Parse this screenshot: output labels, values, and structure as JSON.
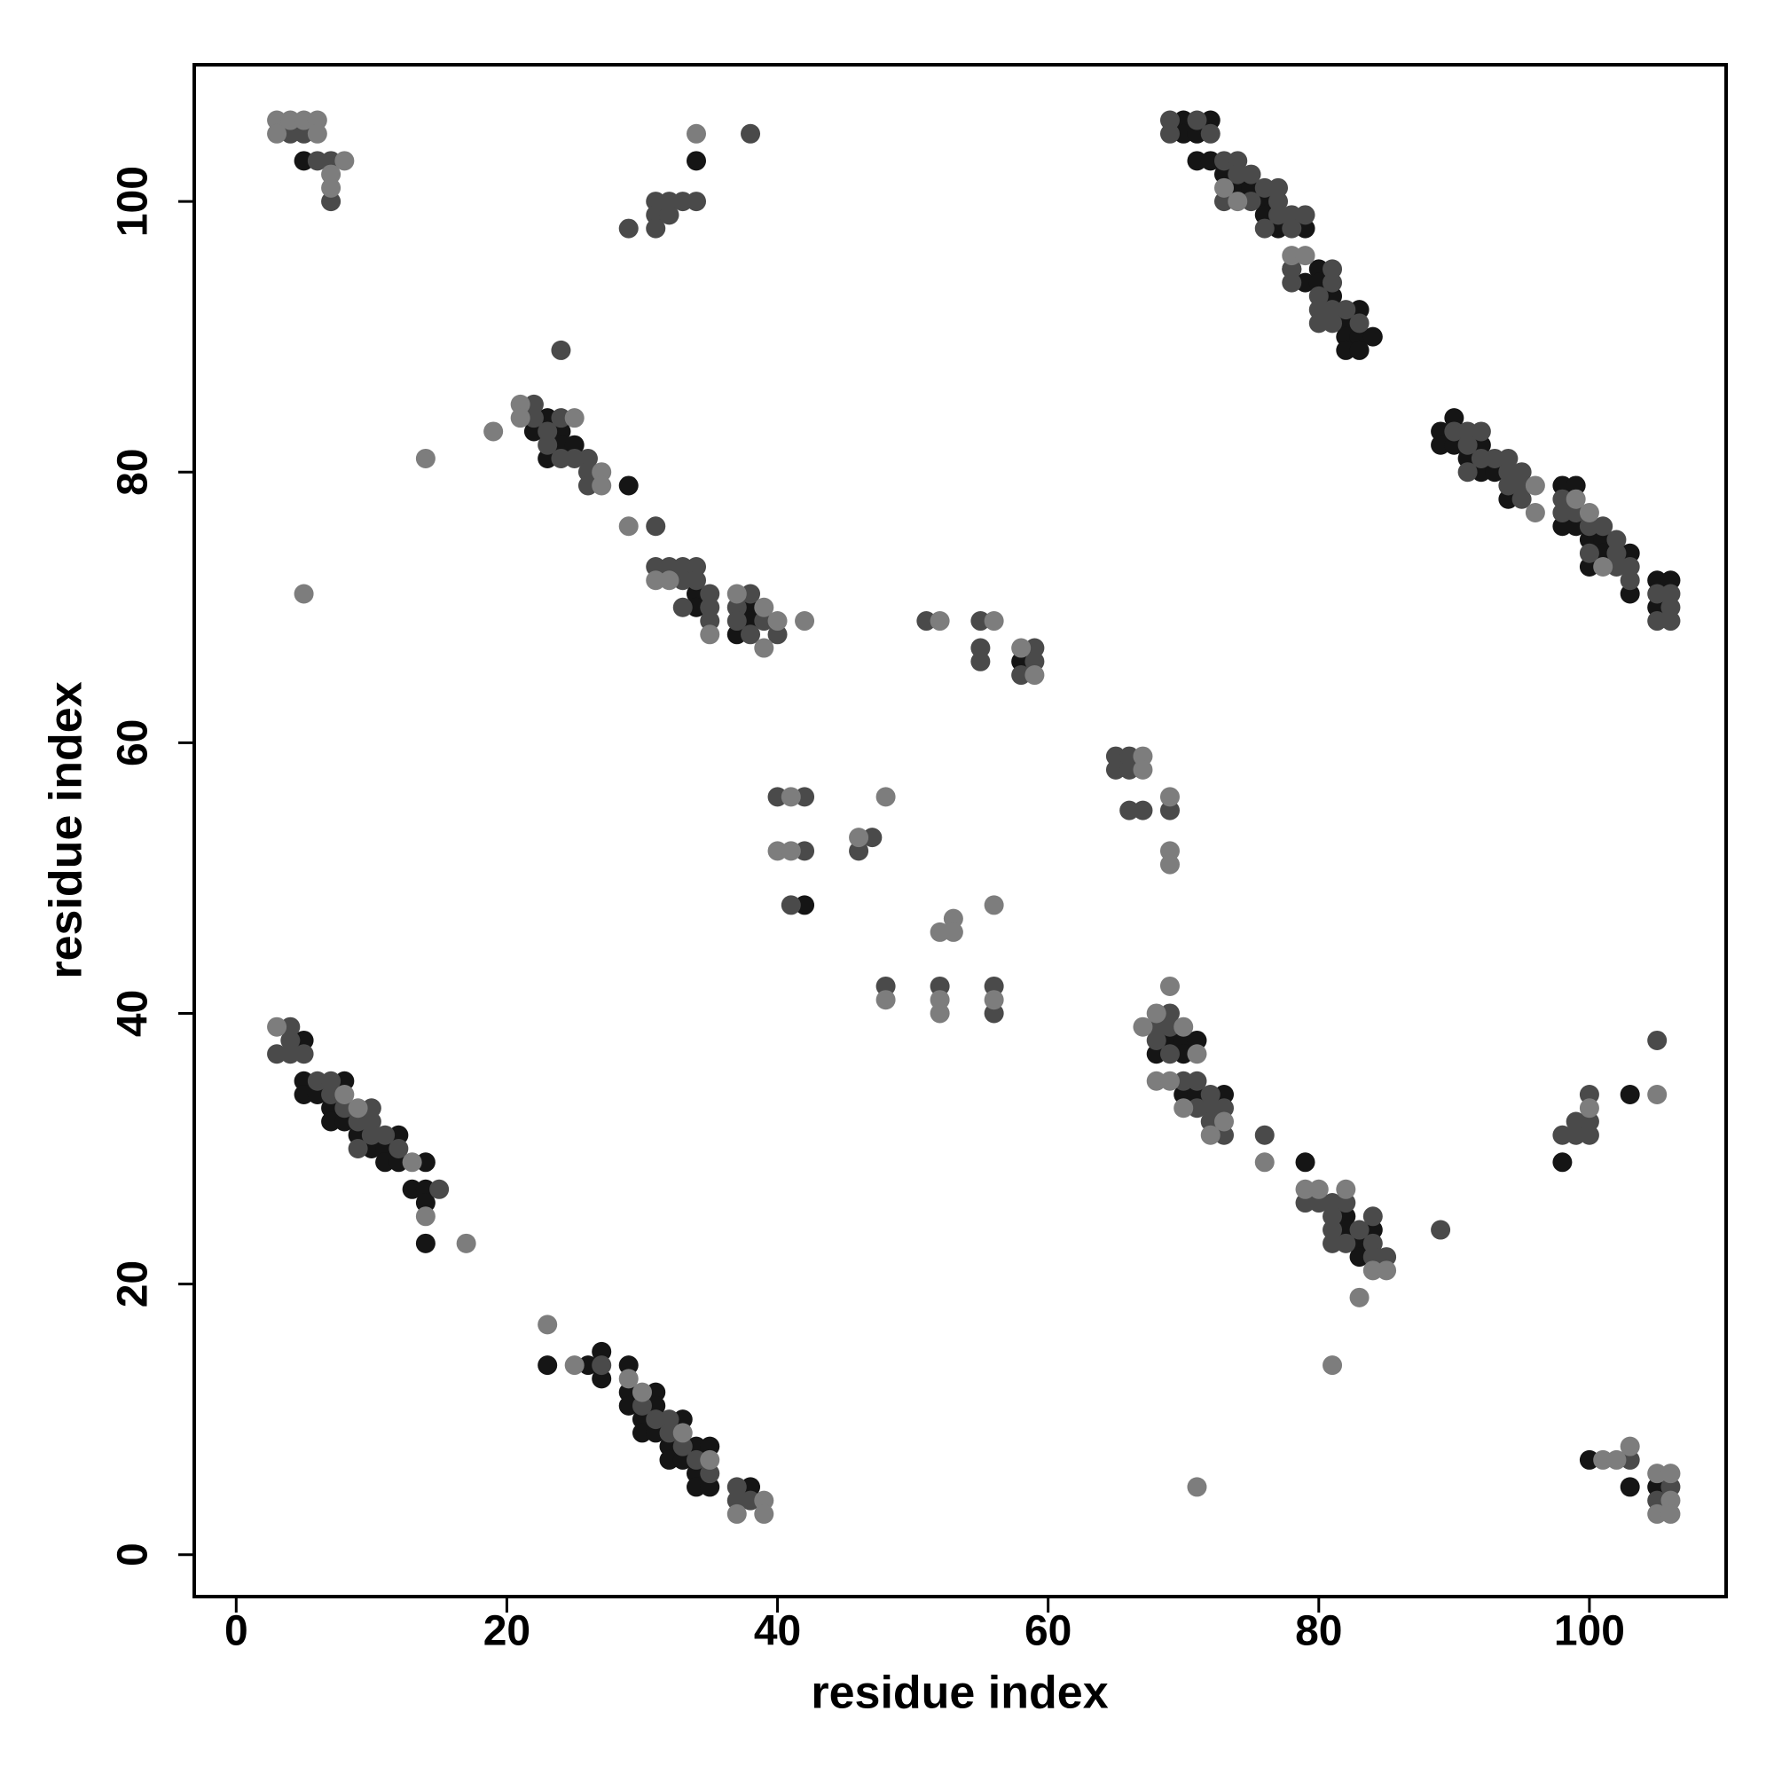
{
  "chart_data": {
    "type": "scatter",
    "xlabel": "residue index",
    "ylabel": "residue index",
    "xlim": [
      -3.1,
      110.1
    ],
    "ylim": [
      -3.1,
      110.1
    ],
    "xticks": [
      0,
      20,
      40,
      60,
      80,
      100
    ],
    "yticks": [
      0,
      20,
      40,
      60,
      80,
      100
    ],
    "grid": false,
    "series": [
      {
        "color": "#151515",
        "x": [
          5,
          34,
          70,
          72,
          70,
          71,
          71,
          72,
          73,
          74,
          75,
          76,
          76,
          77,
          79,
          78,
          80,
          79,
          80,
          81,
          83,
          82,
          82,
          83,
          84,
          82,
          83,
          23,
          22,
          24,
          24,
          25,
          23,
          29,
          34,
          34,
          38,
          38,
          37,
          58,
          90,
          89,
          89,
          90,
          92,
          91,
          92,
          93,
          94,
          98,
          99,
          98,
          99,
          100,
          101,
          101,
          103,
          100,
          105,
          106,
          103,
          105,
          42,
          5,
          5,
          8,
          5,
          6,
          7,
          7,
          8,
          9,
          12,
          10,
          11,
          11,
          12,
          14,
          13,
          14,
          14,
          14,
          27,
          23,
          26,
          29,
          27,
          29,
          31,
          29,
          31,
          30,
          33,
          30,
          31,
          32,
          34,
          35,
          32,
          33,
          34,
          34,
          35,
          38,
          69,
          70,
          71,
          68,
          70,
          70,
          71,
          73,
          79,
          82,
          82,
          84,
          83,
          83,
          103,
          98,
          100,
          103,
          105
        ],
        "values": [
          103,
          103,
          106,
          106,
          105,
          105,
          103,
          103,
          102,
          101,
          101,
          100,
          99,
          98,
          98,
          95,
          95,
          94,
          94,
          93,
          92,
          91,
          90,
          90,
          90,
          89,
          89,
          84,
          83,
          83,
          82,
          82,
          81,
          79,
          71,
          70,
          70,
          69,
          68,
          66,
          84,
          83,
          82,
          82,
          82,
          81,
          80,
          80,
          78,
          79,
          79,
          76,
          76,
          75,
          75,
          74,
          74,
          73,
          72,
          72,
          71,
          70,
          48,
          38,
          35,
          35,
          34,
          34,
          33,
          32,
          32,
          31,
          31,
          30,
          30,
          29,
          29,
          29,
          27,
          27,
          26,
          23,
          15,
          14,
          14,
          14,
          13,
          12,
          12,
          11,
          11,
          10,
          10,
          9,
          9,
          8,
          8,
          8,
          7,
          7,
          6,
          5,
          5,
          5,
          38,
          38,
          38,
          37,
          37,
          34,
          34,
          34,
          29,
          25,
          24,
          24,
          23,
          22,
          34,
          29,
          7,
          5,
          5
        ]
      },
      {
        "color": "#4a4a4a",
        "x": [
          4,
          5,
          6,
          7,
          7,
          38,
          31,
          32,
          33,
          34,
          31,
          32,
          29,
          31,
          69,
          71,
          69,
          72,
          73,
          74,
          74,
          75,
          76,
          77,
          73,
          75,
          77,
          77,
          78,
          79,
          76,
          78,
          78,
          81,
          78,
          81,
          80,
          80,
          81,
          82,
          80,
          81,
          83,
          24,
          22,
          22,
          24,
          23,
          23,
          24,
          25,
          26,
          26,
          26,
          31,
          31,
          32,
          33,
          34,
          33,
          34,
          35,
          38,
          33,
          35,
          37,
          35,
          37,
          39,
          38,
          40,
          51,
          55,
          55,
          59,
          55,
          59,
          58,
          90,
          91,
          92,
          91,
          92,
          93,
          94,
          91,
          94,
          95,
          94,
          95,
          95,
          98,
          98,
          99,
          100,
          101,
          102,
          100,
          102,
          102,
          103,
          103,
          105,
          106,
          106,
          105,
          106,
          40,
          42,
          47,
          42,
          46,
          41,
          48,
          52,
          56,
          56,
          65,
          66,
          65,
          66,
          66,
          67,
          69,
          4,
          4,
          3,
          4,
          5,
          6,
          7,
          7,
          8,
          10,
          9,
          10,
          10,
          11,
          9,
          12,
          15,
          27,
          30,
          31,
          32,
          32,
          33,
          34,
          35,
          37,
          37,
          38,
          69,
          68,
          69,
          68,
          69,
          70,
          71,
          72,
          71,
          72,
          73,
          72,
          73,
          76,
          79,
          80,
          81,
          82,
          81,
          84,
          81,
          83,
          89,
          81,
          82,
          84,
          84,
          85,
          105,
          100,
          99,
          100,
          98,
          99,
          100,
          103,
          106,
          105
        ],
        "values": [
          105,
          105,
          103,
          103,
          100,
          105,
          100,
          100,
          100,
          100,
          99,
          99,
          98,
          98,
          106,
          106,
          105,
          105,
          103,
          103,
          102,
          102,
          101,
          101,
          100,
          100,
          100,
          99,
          99,
          99,
          98,
          98,
          95,
          95,
          94,
          94,
          93,
          92,
          92,
          92,
          91,
          91,
          91,
          89,
          85,
          84,
          84,
          83,
          82,
          81,
          81,
          81,
          80,
          79,
          76,
          73,
          73,
          73,
          73,
          72,
          72,
          71,
          71,
          70,
          70,
          70,
          69,
          69,
          69,
          68,
          68,
          69,
          69,
          67,
          67,
          66,
          66,
          65,
          83,
          83,
          83,
          82,
          81,
          81,
          81,
          80,
          80,
          80,
          79,
          79,
          78,
          78,
          77,
          77,
          76,
          76,
          75,
          74,
          74,
          73,
          73,
          72,
          71,
          71,
          70,
          69,
          69,
          56,
          56,
          53,
          52,
          52,
          48,
          42,
          42,
          42,
          40,
          59,
          59,
          58,
          58,
          55,
          55,
          55,
          39,
          38,
          37,
          37,
          37,
          35,
          35,
          34,
          33,
          33,
          32,
          32,
          31,
          31,
          30,
          30,
          27,
          14,
          11,
          10,
          10,
          9,
          8,
          7,
          6,
          5,
          4,
          4,
          40,
          39,
          39,
          38,
          37,
          35,
          35,
          34,
          33,
          33,
          33,
          32,
          31,
          31,
          26,
          26,
          26,
          26,
          25,
          25,
          24,
          24,
          24,
          23,
          23,
          23,
          22,
          22,
          38,
          34,
          32,
          32,
          31,
          31,
          31,
          7,
          5,
          4
        ]
      },
      {
        "color": "#7d7d7d",
        "x": [
          3,
          4,
          5,
          6,
          3,
          6,
          8,
          7,
          7,
          34,
          73,
          74,
          78,
          79,
          21,
          21,
          25,
          19,
          14,
          27,
          27,
          29,
          31,
          32,
          37,
          39,
          40,
          42,
          35,
          39,
          5,
          52,
          56,
          58,
          59,
          96,
          96,
          99,
          100,
          101,
          41,
          48,
          46,
          40,
          41,
          56,
          53,
          52,
          53,
          48,
          52,
          56,
          52,
          67,
          67,
          69,
          69,
          69,
          3,
          8,
          9,
          13,
          14,
          17,
          23,
          25,
          29,
          30,
          33,
          35,
          39,
          37,
          39,
          69,
          68,
          67,
          70,
          71,
          68,
          69,
          70,
          73,
          72,
          76,
          79,
          80,
          82,
          84,
          85,
          83,
          81,
          105,
          100,
          103,
          101,
          102,
          105,
          106,
          106,
          105,
          106,
          71
        ],
        "values": [
          106,
          106,
          106,
          106,
          105,
          105,
          103,
          102,
          101,
          105,
          101,
          100,
          96,
          96,
          85,
          84,
          84,
          83,
          81,
          80,
          79,
          76,
          72,
          72,
          71,
          70,
          69,
          69,
          68,
          67,
          71,
          69,
          69,
          67,
          65,
          79,
          77,
          78,
          77,
          73,
          56,
          56,
          53,
          52,
          52,
          48,
          47,
          46,
          46,
          41,
          41,
          41,
          40,
          59,
          58,
          56,
          52,
          51,
          39,
          34,
          33,
          29,
          25,
          23,
          17,
          14,
          13,
          12,
          9,
          7,
          4,
          3,
          3,
          42,
          40,
          39,
          39,
          37,
          35,
          35,
          33,
          32,
          31,
          29,
          27,
          27,
          27,
          21,
          21,
          19,
          14,
          34,
          33,
          8,
          7,
          7,
          6,
          6,
          4,
          3,
          3,
          5
        ]
      }
    ]
  }
}
